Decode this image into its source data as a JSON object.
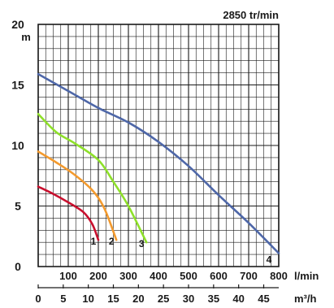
{
  "chart_data": {
    "type": "line",
    "title": "2850 tr/min",
    "ylabel": "m",
    "xlabel": "l/min",
    "x2label": "m³/h",
    "xlim": [
      0,
      800
    ],
    "ylim": [
      0,
      20
    ],
    "x_ticks": [
      100,
      200,
      300,
      400,
      500,
      600,
      700,
      800
    ],
    "y_ticks": [
      0,
      5,
      10,
      15,
      20
    ],
    "x2_ticks": [
      0,
      5,
      10,
      15,
      20,
      25,
      30,
      35,
      40,
      45
    ],
    "grid": true,
    "series": [
      {
        "name": "1",
        "color": "#c8102e",
        "x": [
          0,
          50,
          100,
          150,
          180,
          200
        ],
        "y": [
          6.6,
          6.0,
          5.3,
          4.5,
          3.5,
          2.2
        ]
      },
      {
        "name": "2",
        "color": "#f39a2e",
        "x": [
          0,
          60,
          120,
          180,
          220,
          260
        ],
        "y": [
          9.5,
          8.6,
          7.6,
          6.3,
          4.8,
          2.2
        ]
      },
      {
        "name": "3",
        "color": "#8ee02a",
        "x": [
          0,
          60,
          120,
          200,
          250,
          300,
          360
        ],
        "y": [
          12.6,
          11.1,
          10.2,
          8.8,
          7.0,
          5.0,
          2.0
        ]
      },
      {
        "name": "4",
        "color": "#4e67a8",
        "x": [
          0,
          100,
          200,
          300,
          400,
          500,
          600,
          700,
          800
        ],
        "y": [
          15.9,
          14.5,
          13.1,
          11.9,
          10.3,
          8.3,
          5.9,
          3.6,
          1.1
        ]
      }
    ]
  }
}
